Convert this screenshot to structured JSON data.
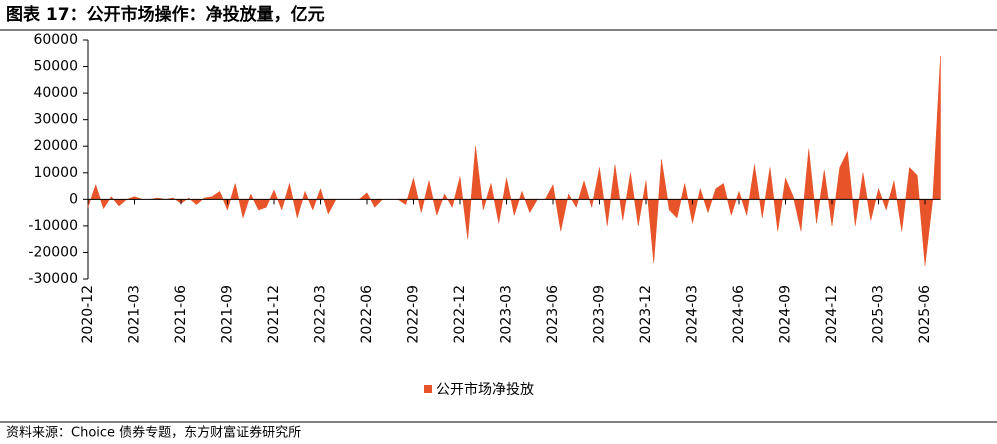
{
  "chart_data": {
    "type": "area",
    "title": "图表 17：公开市场操作：净投放量，亿元",
    "source": "资料来源：Choice 债券专题，东方财富证券研究所",
    "categories": [
      "2020-12",
      null,
      null,
      null,
      null,
      null,
      "2021-03",
      null,
      null,
      null,
      null,
      null,
      "2021-06",
      null,
      null,
      null,
      null,
      null,
      "2021-09",
      null,
      null,
      null,
      null,
      null,
      "2021-12",
      null,
      null,
      null,
      null,
      null,
      "2022-03",
      null,
      null,
      null,
      null,
      null,
      "2022-06",
      null,
      null,
      null,
      null,
      null,
      "2022-09",
      null,
      null,
      null,
      null,
      null,
      "2022-12",
      null,
      null,
      null,
      null,
      null,
      "2023-03",
      null,
      null,
      null,
      null,
      null,
      "2023-06",
      null,
      null,
      null,
      null,
      null,
      "2023-09",
      null,
      null,
      null,
      null,
      null,
      "2023-12",
      null,
      null,
      null,
      null,
      null,
      "2024-03",
      null,
      null,
      null,
      null,
      null,
      "2024-06",
      null,
      null,
      null,
      null,
      null,
      "2024-09",
      null,
      null,
      null,
      null,
      null,
      "2024-12",
      null,
      null,
      null,
      null,
      null,
      "2025-03",
      null,
      null,
      null,
      null,
      null,
      "2025-06",
      null,
      null
    ],
    "series": [
      {
        "name": "公开市场净投放",
        "color": "#e8542a",
        "values": [
          -3000,
          5500,
          -3500,
          1000,
          -2500,
          0,
          1000,
          0,
          0,
          500,
          0,
          500,
          -1500,
          500,
          -2000,
          500,
          1000,
          3000,
          -4000,
          6000,
          -7000,
          2000,
          -4000,
          -3000,
          3500,
          -4000,
          6000,
          -7000,
          3000,
          -4000,
          4000,
          -5500,
          0,
          0,
          0,
          0,
          2500,
          -3000,
          0,
          0,
          0,
          -2000,
          8000,
          -5000,
          7000,
          -6000,
          2000,
          -3000,
          8500,
          -15000,
          20000,
          -4000,
          6000,
          -9000,
          8000,
          -6000,
          3000,
          -5000,
          0,
          0,
          5500,
          -12000,
          2000,
          -3000,
          7000,
          -3000,
          12000,
          -10000,
          13000,
          -8000,
          10000,
          -10000,
          7000,
          -24000,
          15000,
          -4000,
          -7000,
          6000,
          -9000,
          4000,
          -5000,
          4000,
          6000,
          -6000,
          3000,
          -6000,
          13000,
          -7000,
          12000,
          -12000,
          8000,
          1000,
          -12000,
          19000,
          -9000,
          11000,
          -10000,
          12000,
          18000,
          -10000,
          10000,
          -8000,
          4000,
          -4000,
          7000,
          -12000,
          12000,
          9000,
          -25000,
          0,
          54000
        ]
      }
    ],
    "ylim": [
      -30000,
      60000
    ],
    "yticks": [
      -30000,
      -20000,
      -10000,
      0,
      10000,
      20000,
      30000,
      40000,
      50000,
      60000
    ]
  }
}
